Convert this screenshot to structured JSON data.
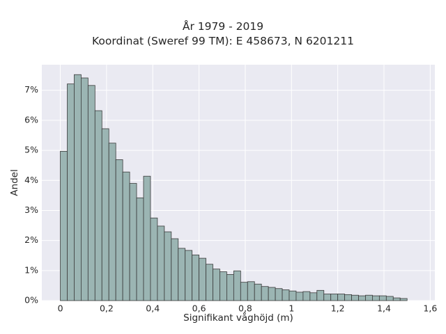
{
  "chart_data": {
    "type": "bar",
    "title_lines": [
      "År 1979 - 2019",
      "Koordinat (Sweref 99 TM): E 458673, N 6201211"
    ],
    "xlabel": "Signifikant våghöjd (m)",
    "ylabel": "Andel",
    "xlim": [
      -0.08,
      1.62
    ],
    "ylim": [
      0,
      0.0785
    ],
    "xticks": [
      0,
      0.2,
      0.4,
      0.6,
      0.8,
      1.0,
      1.2,
      1.4,
      1.6
    ],
    "xtick_labels": [
      "0",
      "0,2",
      "0,4",
      "0,6",
      "0,8",
      "1",
      "1,2",
      "1,4",
      "1,6"
    ],
    "yticks": [
      0,
      0.01,
      0.02,
      0.03,
      0.04,
      0.05,
      0.06,
      0.07
    ],
    "ytick_labels": [
      "0%",
      "1%",
      "2%",
      "3%",
      "4%",
      "5%",
      "6%",
      "7%"
    ],
    "grid": true,
    "bin_start": 0,
    "bin_width": 0.03,
    "values": [
      0.0497,
      0.0721,
      0.0752,
      0.0741,
      0.0716,
      0.0632,
      0.0572,
      0.0524,
      0.0469,
      0.0428,
      0.039,
      0.0342,
      0.0414,
      0.0275,
      0.0248,
      0.0229,
      0.0206,
      0.0174,
      0.0167,
      0.0152,
      0.0141,
      0.0121,
      0.0105,
      0.0096,
      0.0087,
      0.0099,
      0.0061,
      0.0063,
      0.0055,
      0.0047,
      0.0044,
      0.004,
      0.0036,
      0.0032,
      0.0028,
      0.003,
      0.0026,
      0.0034,
      0.0022,
      0.0022,
      0.0022,
      0.002,
      0.0018,
      0.0016,
      0.0018,
      0.0016,
      0.0016,
      0.0014,
      0.0009,
      0.0007
    ],
    "colors": {
      "bar_fill": "#9bb5b3",
      "bar_edge": "#3a3a3a",
      "plot_bg": "#eaeaf2",
      "grid": "#ffffff"
    }
  }
}
